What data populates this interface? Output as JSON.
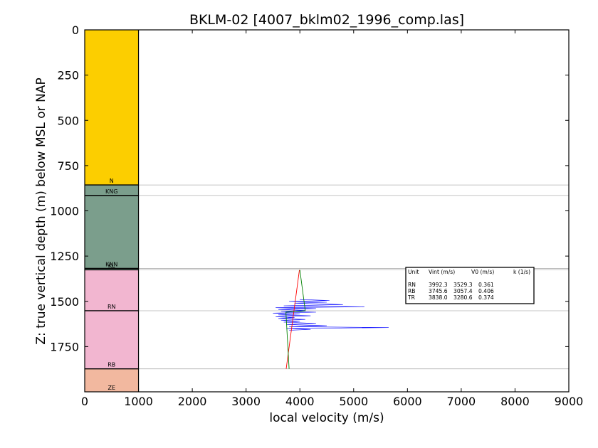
{
  "chart_data": {
    "type": "line",
    "title": "BKLM-02 [4007_bklm02_1996_comp.las]",
    "xlabel": "local velocity (m/s)",
    "ylabel": "Z: true vertical depth (m) below MSL or NAP",
    "xlim": [
      0,
      9000
    ],
    "ylim": [
      2000,
      0
    ],
    "x_ticks": [
      "0",
      "1000",
      "2000",
      "3000",
      "4000",
      "5000",
      "6000",
      "7000",
      "8000",
      "9000"
    ],
    "y_ticks": [
      "0",
      "250",
      "500",
      "750",
      "1000",
      "1250",
      "1500",
      "1750"
    ],
    "grid": false,
    "strat_column": {
      "x_range": [
        0,
        1000
      ],
      "units": [
        {
          "name": "",
          "top": 0,
          "base": 857,
          "color": "#fcce00"
        },
        {
          "name": "N",
          "top": 857,
          "base": 915,
          "color": "#7b9e8c"
        },
        {
          "name": "KNG",
          "top": 915,
          "base": 1318,
          "color": "#7b9e8c"
        },
        {
          "name": "KNN",
          "top": 1318,
          "base": 1326,
          "color": "#7b9e8c"
        },
        {
          "name": "KL",
          "top": 1326,
          "base": 1552,
          "color": "#f2b6d0"
        },
        {
          "name": "RN",
          "top": 1552,
          "base": 1873,
          "color": "#f2b6d0"
        },
        {
          "name": "RB",
          "top": 1873,
          "base": 2000,
          "color": "#f2b89f"
        },
        {
          "name": "ZE",
          "top": 2000,
          "base": 2000,
          "color": "#f2b89f"
        }
      ]
    },
    "horizon_lines": [
      857,
      915,
      1318,
      1326,
      1552,
      1873
    ],
    "series": [
      {
        "color": "#0000ff",
        "points": [
          [
            4000,
            1490
          ],
          [
            4550,
            1495
          ],
          [
            3800,
            1500
          ],
          [
            4500,
            1505
          ],
          [
            3900,
            1510
          ],
          [
            4800,
            1518
          ],
          [
            3700,
            1525
          ],
          [
            5200,
            1530
          ],
          [
            3550,
            1535
          ],
          [
            4300,
            1540
          ],
          [
            3600,
            1545
          ],
          [
            4100,
            1550
          ],
          [
            3650,
            1555
          ],
          [
            4300,
            1560
          ],
          [
            3500,
            1565
          ],
          [
            4000,
            1570
          ],
          [
            3600,
            1575
          ],
          [
            4200,
            1580
          ],
          [
            3550,
            1585
          ],
          [
            3900,
            1590
          ],
          [
            3600,
            1595
          ],
          [
            4100,
            1600
          ],
          [
            3650,
            1605
          ],
          [
            4000,
            1610
          ],
          [
            3700,
            1615
          ],
          [
            4300,
            1622
          ],
          [
            3750,
            1628
          ],
          [
            4500,
            1635
          ],
          [
            3800,
            1640
          ],
          [
            5650,
            1645
          ],
          [
            3750,
            1650
          ],
          [
            4200,
            1655
          ],
          [
            3800,
            1660
          ]
        ]
      },
      {
        "color": "#ff0000",
        "points": [
          [
            3992,
            1326
          ],
          [
            3745,
            1873
          ]
        ]
      },
      {
        "color": "#008000",
        "points": [
          [
            4000,
            1326
          ],
          [
            4100,
            1552
          ],
          [
            3740,
            1560
          ],
          [
            3800,
            1873
          ]
        ]
      }
    ],
    "annotation_table": {
      "header": [
        "Unit",
        "Vint (m/s)",
        "V0 (m/s)",
        "k (1/s)"
      ],
      "rows": [
        [
          "RN",
          "3992.3",
          "3529.3",
          "0.361"
        ],
        [
          "RB",
          "3745.6",
          "3057.4",
          "0.406"
        ],
        [
          "TR",
          "3838.0",
          "3280.6",
          "0.374"
        ]
      ]
    }
  }
}
